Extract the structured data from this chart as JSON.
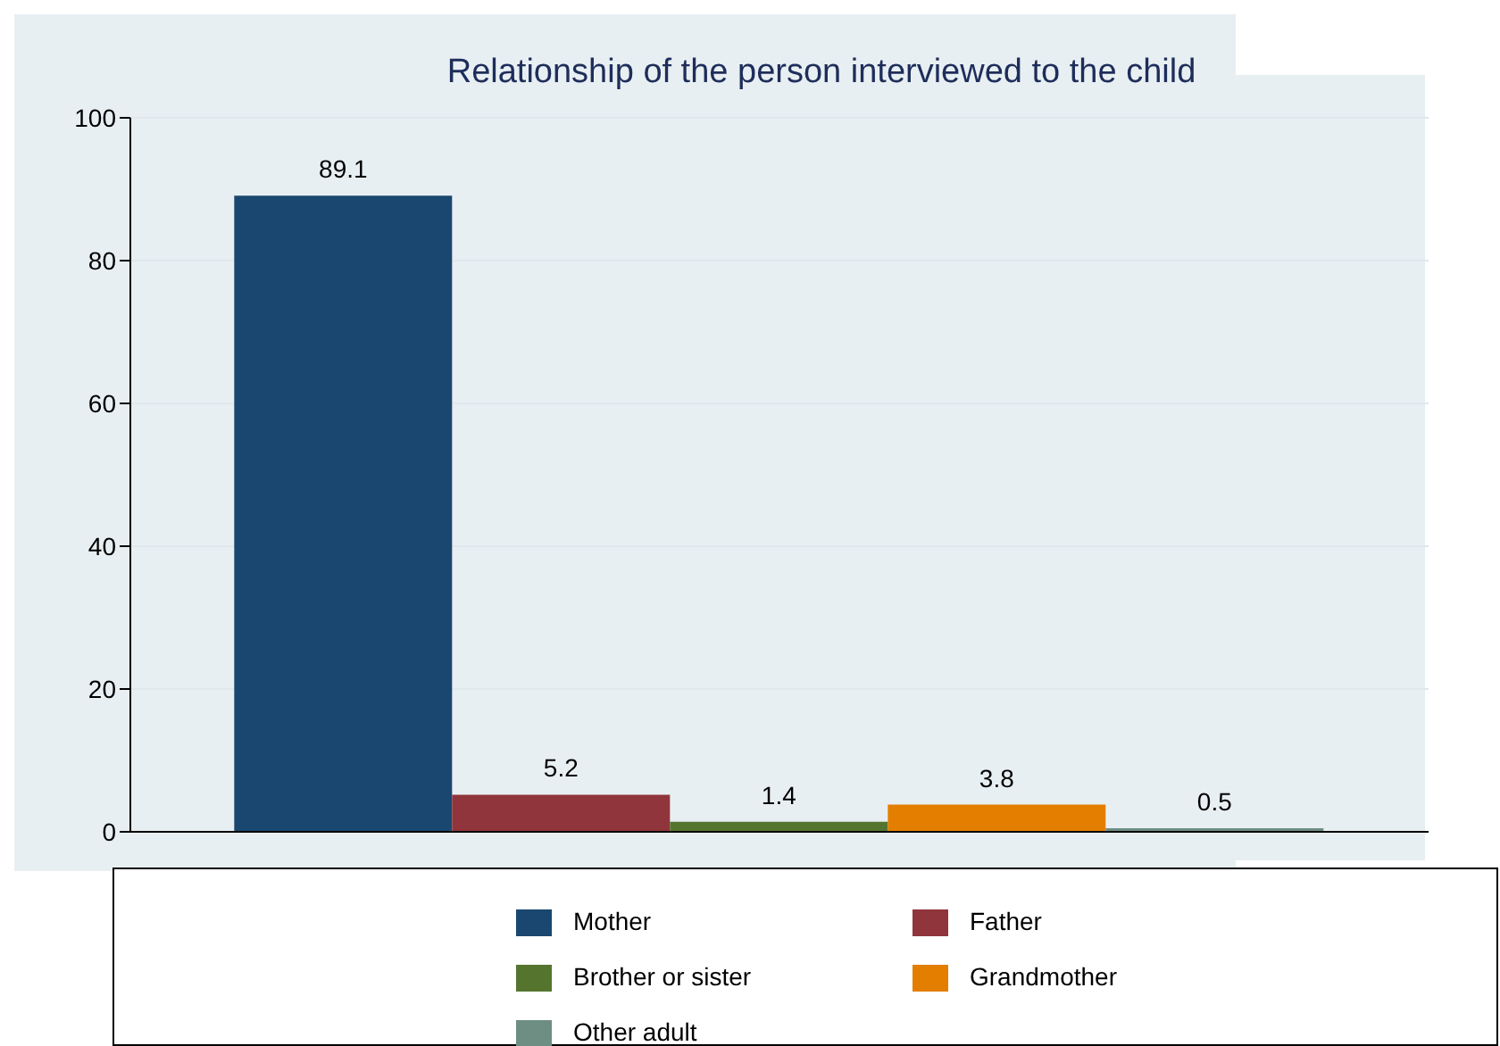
{
  "chart_data": {
    "type": "bar",
    "title": "Relationship of the person interviewed to the child",
    "categories": [
      null
    ],
    "series": [
      {
        "name": "Mother",
        "color": "#1a476f",
        "values": [
          89.1
        ]
      },
      {
        "name": "Father",
        "color": "#90353b",
        "values": [
          5.2
        ]
      },
      {
        "name": "Brother or sister",
        "color": "#55752f",
        "values": [
          1.4
        ]
      },
      {
        "name": "Grandmother",
        "color": "#e37e00",
        "values": [
          3.8
        ]
      },
      {
        "name": "Other adult",
        "color": "#6e8e84",
        "values": [
          0.5
        ]
      }
    ],
    "ylim": [
      0,
      100
    ],
    "yticks": [
      0,
      20,
      40,
      60,
      80,
      100
    ],
    "grid": "y",
    "legend": "bottom",
    "data_labels": true
  }
}
